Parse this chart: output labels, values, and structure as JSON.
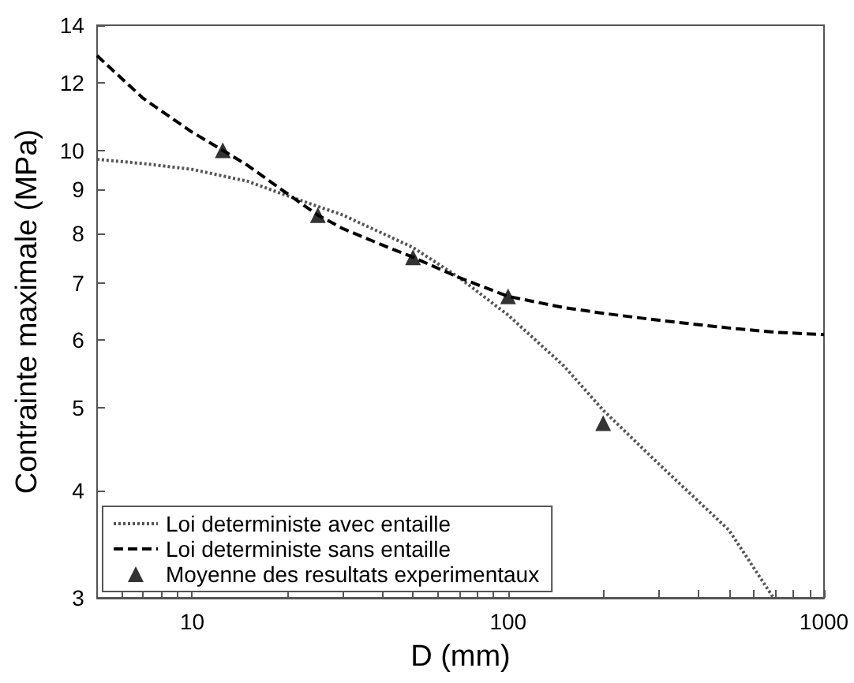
{
  "chart_data": {
    "type": "line",
    "xlabel": "D (mm)",
    "ylabel": "Contrainte maximale (MPa)",
    "log": "xy",
    "grid": false,
    "legend": "bottom left",
    "xlim": [
      5,
      1000
    ],
    "xticks": [
      {
        "value": 6,
        "label": null
      },
      {
        "value": 7,
        "label": null
      },
      {
        "value": 8,
        "label": null
      },
      {
        "value": 9,
        "label": null
      },
      10,
      {
        "value": 20,
        "label": null
      },
      {
        "value": 30,
        "label": null
      },
      {
        "value": 40,
        "label": null
      },
      {
        "value": 50,
        "label": null
      },
      {
        "value": 60,
        "label": null
      },
      {
        "value": 70,
        "label": null
      },
      {
        "value": 80,
        "label": null
      },
      {
        "value": 90,
        "label": null
      },
      100,
      {
        "value": 200,
        "label": null
      },
      {
        "value": 300,
        "label": null
      },
      {
        "value": 400,
        "label": null
      },
      {
        "value": 500,
        "label": null
      },
      {
        "value": 600,
        "label": null
      },
      {
        "value": 700,
        "label": null
      },
      {
        "value": 800,
        "label": null
      },
      {
        "value": 900,
        "label": null
      },
      1000
    ],
    "ylim": [
      3,
      14
    ],
    "yticks": [
      3,
      4,
      5,
      6,
      7,
      8,
      9,
      10,
      12,
      14
    ],
    "series": [
      {
        "name": "Loi deterministe avec entaille",
        "color": "#555555",
        "line_style": "dotted",
        "marker": "none",
        "x": [
          5,
          7,
          10,
          15,
          20,
          25,
          30,
          40,
          50,
          70,
          100,
          150,
          200,
          300,
          500,
          692
        ],
        "values": [
          9.76,
          9.65,
          9.5,
          9.2,
          8.85,
          8.6,
          8.4,
          8.0,
          7.7,
          7.1,
          6.42,
          5.6,
          4.97,
          4.3,
          3.6,
          3.0
        ]
      },
      {
        "name": "Loi deterministe sans entaille",
        "color": "#000000",
        "line_style": "dashed",
        "marker": "none",
        "x": [
          5,
          7,
          10,
          12.5,
          15,
          20,
          25,
          30,
          40,
          50,
          70,
          100,
          150,
          200,
          300,
          500,
          700,
          1000
        ],
        "values": [
          12.9,
          11.5,
          10.5,
          10,
          9.6,
          8.9,
          8.4,
          8.1,
          7.75,
          7.5,
          7.1,
          6.75,
          6.55,
          6.45,
          6.33,
          6.2,
          6.13,
          6.09
        ]
      },
      {
        "name": "Moyenne des resultats experimentaux",
        "type": "scatter",
        "color": "#000000",
        "marker": "triangle",
        "x": [
          12.5,
          25,
          50,
          100,
          200
        ],
        "values": [
          10,
          8.4,
          7.5,
          6.75,
          4.8
        ]
      }
    ]
  }
}
